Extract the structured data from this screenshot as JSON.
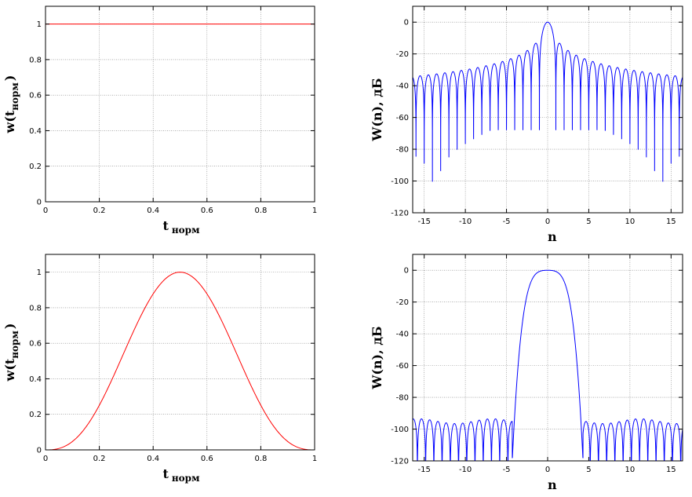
{
  "colors": {
    "window": "#ff0000",
    "spectrum": "#0000ff",
    "grid": "#808080",
    "axis": "#000000"
  },
  "chart_data": [
    {
      "type": "line",
      "id": "rect-window",
      "title": "",
      "xlabel_main": "t",
      "xlabel_sub": "норм",
      "ylabel_main": "w(t",
      "ylabel_sub": "норм",
      "ylabel_close": ")",
      "xlim": [
        0,
        1
      ],
      "ylim": [
        0,
        1.1
      ],
      "xticks": [
        0,
        0.2,
        0.4,
        0.6,
        0.8,
        1
      ],
      "xtick_labels": [
        "0",
        "0.2",
        "0.4",
        "0.6",
        "0.8",
        "1"
      ],
      "yticks": [
        0,
        0.2,
        0.4,
        0.6,
        0.8,
        1
      ],
      "ytick_labels": [
        "0",
        "0.2",
        "0.4",
        "0.6",
        "0.8",
        "1"
      ],
      "grid": true,
      "series": [
        {
          "kind": "rectangular",
          "x": [
            0,
            1
          ],
          "y": [
            1,
            1
          ]
        }
      ]
    },
    {
      "type": "line",
      "id": "rect-spectrum",
      "title": "",
      "xlabel_main": "n",
      "xlabel_sub": "",
      "ylabel_main": "W(n), дБ",
      "ylabel_sub": "",
      "ylabel_close": "",
      "xlim": [
        -16.4,
        16.4
      ],
      "ylim": [
        -120,
        10
      ],
      "xticks": [
        -15,
        -10,
        -5,
        0,
        5,
        10,
        15
      ],
      "xtick_labels": [
        "-15",
        "-10",
        "-5",
        "0",
        "5",
        "10",
        "15"
      ],
      "yticks": [
        -120,
        -100,
        -80,
        -60,
        -40,
        -20,
        0
      ],
      "ytick_labels": [
        "-120",
        "-100",
        "-80",
        "-60",
        "-40",
        "-20",
        "0"
      ],
      "grid": true,
      "series": [
        {
          "kind": "sinc-db",
          "peak_db": 0,
          "first_sidelobe_db": -13.3,
          "floor_db": -120
        }
      ]
    },
    {
      "type": "line",
      "id": "hann-window",
      "title": "",
      "xlabel_main": "t",
      "xlabel_sub": "норм",
      "ylabel_main": "w(t",
      "ylabel_sub": "норм",
      "ylabel_close": ")",
      "xlim": [
        0,
        1
      ],
      "ylim": [
        0,
        1.1
      ],
      "xticks": [
        0,
        0.2,
        0.4,
        0.6,
        0.8,
        1
      ],
      "xtick_labels": [
        "0",
        "0.2",
        "0.4",
        "0.6",
        "0.8",
        "1"
      ],
      "yticks": [
        0,
        0.2,
        0.4,
        0.6,
        0.8,
        1
      ],
      "ytick_labels": [
        "0",
        "0.2",
        "0.4",
        "0.6",
        "0.8",
        "1"
      ],
      "grid": true,
      "series": [
        {
          "kind": "bell",
          "peak_x": 0.5,
          "peak_y": 1
        }
      ]
    },
    {
      "type": "line",
      "id": "hann-spectrum",
      "title": "",
      "xlabel_main": "n",
      "xlabel_sub": "",
      "ylabel_main": "W(n), дБ",
      "ylabel_sub": "",
      "ylabel_close": "",
      "xlim": [
        -16.4,
        16.4
      ],
      "ylim": [
        -120,
        10
      ],
      "xticks": [
        -15,
        -10,
        -5,
        0,
        5,
        10,
        15
      ],
      "xtick_labels": [
        "-15",
        "-10",
        "-5",
        "0",
        "5",
        "10",
        "15"
      ],
      "yticks": [
        -120,
        -100,
        -80,
        -60,
        -40,
        -20,
        0
      ],
      "ytick_labels": [
        "-120",
        "-100",
        "-80",
        "-60",
        "-40",
        "-20",
        "0"
      ],
      "grid": true,
      "series": [
        {
          "kind": "mainlobe-db",
          "peak_db": 0,
          "mainlobe_edge": 4.3,
          "sidelobe_db": -95,
          "floor_db": -120
        }
      ]
    }
  ]
}
